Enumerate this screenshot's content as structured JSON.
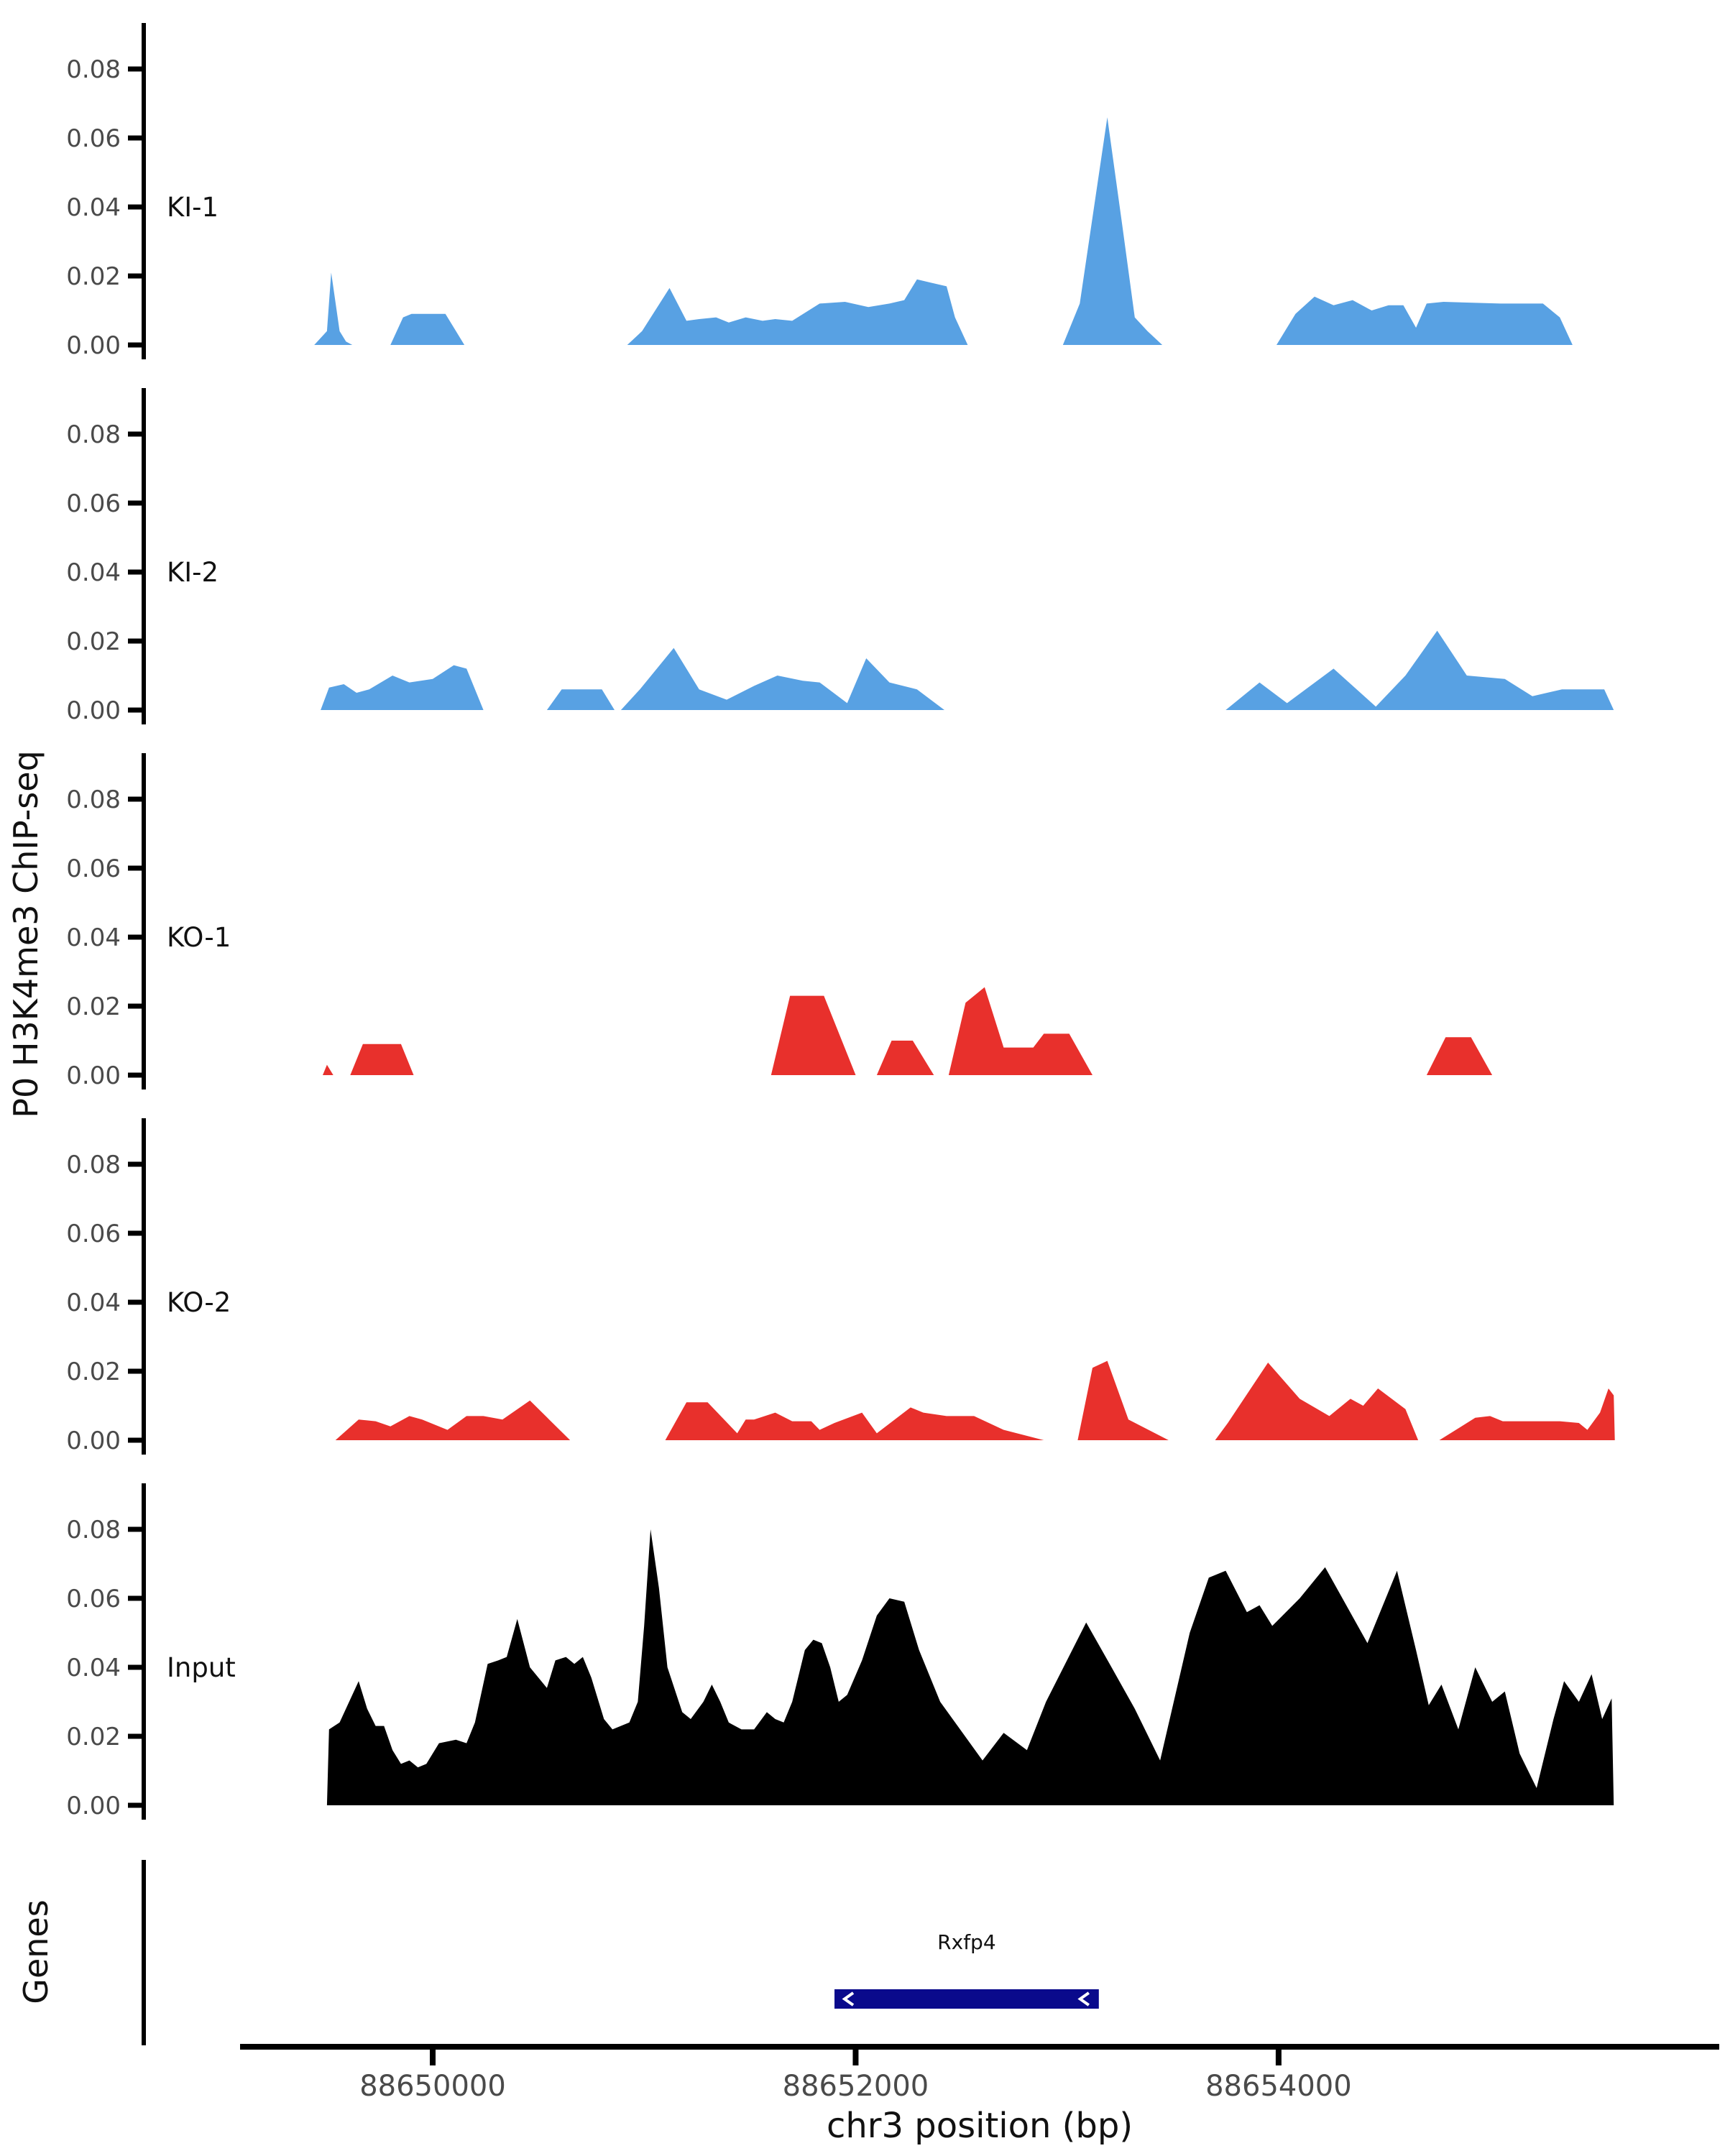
{
  "figure": {
    "ylabel": "P0 H3K4me3 ChIP-seq",
    "xlabel": "chr3 position (bp)",
    "genes_axis_label": "Genes",
    "gene_name": "Rxfp4"
  },
  "colors": {
    "ki_blue": "#58A1E3",
    "ko_red": "#E8302C",
    "input_black": "#000000",
    "gene_navy": "#0A0A8C",
    "axis": "#000000",
    "tick_text": "#4a4a4a",
    "label_text": "#111111"
  },
  "chart_data": {
    "type": "area",
    "title": "",
    "xlabel": "chr3 position (bp)",
    "ylabel": "P0 H3K4me3 ChIP-seq",
    "xlim": [
      88649089,
      88656080
    ],
    "x_ticks": [
      88650000,
      88652000,
      88654000
    ],
    "y_ticks": [
      0.0,
      0.02,
      0.04,
      0.06,
      0.08
    ],
    "ylim": [
      0,
      0.088
    ],
    "grid": false,
    "legend_position": "none",
    "tracks": [
      {
        "label": "KI-1",
        "color": "#58A1E3",
        "points": [
          [
            88649440,
            0
          ],
          [
            88649500,
            0.004
          ],
          [
            88649520,
            0.021
          ],
          [
            88649560,
            0.004
          ],
          [
            88649590,
            0.001
          ],
          [
            88649620,
            0
          ],
          [
            88649800,
            0
          ],
          [
            88649860,
            0.008
          ],
          [
            88649900,
            0.009
          ],
          [
            88650060,
            0.009
          ],
          [
            88650110,
            0.004
          ],
          [
            88650150,
            0
          ],
          [
            88650920,
            0
          ],
          [
            88650990,
            0.004
          ],
          [
            88651120,
            0.0165
          ],
          [
            88651200,
            0.007
          ],
          [
            88651260,
            0.0075
          ],
          [
            88651340,
            0.008
          ],
          [
            88651400,
            0.0065
          ],
          [
            88651480,
            0.008
          ],
          [
            88651560,
            0.007
          ],
          [
            88651620,
            0.0075
          ],
          [
            88651700,
            0.007
          ],
          [
            88651830,
            0.012
          ],
          [
            88651950,
            0.0125
          ],
          [
            88652060,
            0.011
          ],
          [
            88652160,
            0.012
          ],
          [
            88652230,
            0.013
          ],
          [
            88652290,
            0.019
          ],
          [
            88652360,
            0.018
          ],
          [
            88652430,
            0.017
          ],
          [
            88652470,
            0.008
          ],
          [
            88652530,
            0
          ],
          [
            88652980,
            0
          ],
          [
            88653060,
            0.012
          ],
          [
            88653190,
            0.066
          ],
          [
            88653260,
            0.035
          ],
          [
            88653320,
            0.008
          ],
          [
            88653380,
            0.004
          ],
          [
            88653450,
            0
          ],
          [
            88653990,
            0
          ],
          [
            88654080,
            0.009
          ],
          [
            88654170,
            0.014
          ],
          [
            88654260,
            0.0115
          ],
          [
            88654350,
            0.013
          ],
          [
            88654440,
            0.01
          ],
          [
            88654520,
            0.0115
          ],
          [
            88654590,
            0.0115
          ],
          [
            88654650,
            0.005
          ],
          [
            88654700,
            0.012
          ],
          [
            88654780,
            0.0125
          ],
          [
            88655050,
            0.012
          ],
          [
            88655250,
            0.012
          ],
          [
            88655330,
            0.008
          ],
          [
            88655390,
            0
          ]
        ]
      },
      {
        "label": "KI-2",
        "color": "#58A1E3",
        "points": [
          [
            88649470,
            0
          ],
          [
            88649510,
            0.0065
          ],
          [
            88649580,
            0.0075
          ],
          [
            88649640,
            0.005
          ],
          [
            88649700,
            0.006
          ],
          [
            88649810,
            0.01
          ],
          [
            88649890,
            0.008
          ],
          [
            88650000,
            0.009
          ],
          [
            88650100,
            0.013
          ],
          [
            88650160,
            0.012
          ],
          [
            88650240,
            0
          ],
          [
            88650540,
            0
          ],
          [
            88650610,
            0.006
          ],
          [
            88650800,
            0.006
          ],
          [
            88650860,
            0
          ],
          [
            88650890,
            0
          ],
          [
            88650980,
            0.006
          ],
          [
            88651140,
            0.018
          ],
          [
            88651260,
            0.006
          ],
          [
            88651390,
            0.003
          ],
          [
            88651520,
            0.007
          ],
          [
            88651630,
            0.01
          ],
          [
            88651750,
            0.0085
          ],
          [
            88651830,
            0.008
          ],
          [
            88651960,
            0.002
          ],
          [
            88652050,
            0.015
          ],
          [
            88652160,
            0.008
          ],
          [
            88652290,
            0.006
          ],
          [
            88652420,
            0
          ],
          [
            88653750,
            0
          ],
          [
            88653910,
            0.008
          ],
          [
            88654040,
            0.002
          ],
          [
            88654260,
            0.012
          ],
          [
            88654460,
            0.001
          ],
          [
            88654600,
            0.01
          ],
          [
            88654750,
            0.023
          ],
          [
            88654890,
            0.01
          ],
          [
            88655070,
            0.009
          ],
          [
            88655200,
            0.004
          ],
          [
            88655340,
            0.006
          ],
          [
            88655540,
            0.006
          ],
          [
            88655585,
            0
          ]
        ]
      },
      {
        "label": "KO-1",
        "color": "#E8302C",
        "points": [
          [
            88649480,
            0
          ],
          [
            88649500,
            0.003
          ],
          [
            88649530,
            0
          ],
          [
            88649610,
            0
          ],
          [
            88649670,
            0.009
          ],
          [
            88649850,
            0.009
          ],
          [
            88649910,
            0
          ],
          [
            88651600,
            0
          ],
          [
            88651690,
            0.023
          ],
          [
            88651850,
            0.023
          ],
          [
            88652000,
            0
          ],
          [
            88652100,
            0
          ],
          [
            88652170,
            0.01
          ],
          [
            88652270,
            0.01
          ],
          [
            88652370,
            0
          ],
          [
            88652440,
            0
          ],
          [
            88652520,
            0.021
          ],
          [
            88652610,
            0.0255
          ],
          [
            88652700,
            0.008
          ],
          [
            88652840,
            0.008
          ],
          [
            88652890,
            0.012
          ],
          [
            88653010,
            0.012
          ],
          [
            88653120,
            0
          ],
          [
            88654700,
            0
          ],
          [
            88654790,
            0.011
          ],
          [
            88654910,
            0.011
          ],
          [
            88655010,
            0
          ]
        ]
      },
      {
        "label": "KO-2",
        "color": "#E8302C",
        "points": [
          [
            88649540,
            0
          ],
          [
            88649650,
            0.006
          ],
          [
            88649730,
            0.0055
          ],
          [
            88649800,
            0.004
          ],
          [
            88649890,
            0.007
          ],
          [
            88649950,
            0.006
          ],
          [
            88650070,
            0.003
          ],
          [
            88650160,
            0.007
          ],
          [
            88650240,
            0.007
          ],
          [
            88650330,
            0.006
          ],
          [
            88650460,
            0.0115
          ],
          [
            88650650,
            0
          ],
          [
            88651100,
            0
          ],
          [
            88651200,
            0.011
          ],
          [
            88651300,
            0.011
          ],
          [
            88651440,
            0.002
          ],
          [
            88651480,
            0.006
          ],
          [
            88651520,
            0.006
          ],
          [
            88651620,
            0.008
          ],
          [
            88651700,
            0.0055
          ],
          [
            88651790,
            0.0055
          ],
          [
            88651830,
            0.003
          ],
          [
            88651900,
            0.005
          ],
          [
            88652030,
            0.008
          ],
          [
            88652100,
            0.002
          ],
          [
            88652260,
            0.0095
          ],
          [
            88652320,
            0.008
          ],
          [
            88652430,
            0.007
          ],
          [
            88652560,
            0.007
          ],
          [
            88652700,
            0.003
          ],
          [
            88652890,
            0
          ],
          [
            88653050,
            0
          ],
          [
            88653120,
            0.021
          ],
          [
            88653190,
            0.023
          ],
          [
            88653290,
            0.006
          ],
          [
            88653480,
            0
          ],
          [
            88653700,
            0
          ],
          [
            88653760,
            0.005
          ],
          [
            88653950,
            0.0225
          ],
          [
            88654100,
            0.012
          ],
          [
            88654240,
            0.007
          ],
          [
            88654340,
            0.012
          ],
          [
            88654400,
            0.01
          ],
          [
            88654470,
            0.015
          ],
          [
            88654600,
            0.009
          ],
          [
            88654660,
            0
          ],
          [
            88654760,
            0
          ],
          [
            88654930,
            0.0065
          ],
          [
            88655000,
            0.007
          ],
          [
            88655060,
            0.0055
          ],
          [
            88655200,
            0.0055
          ],
          [
            88655330,
            0.0055
          ],
          [
            88655420,
            0.005
          ],
          [
            88655460,
            0.003
          ],
          [
            88655520,
            0.008
          ],
          [
            88655560,
            0.015
          ],
          [
            88655585,
            0.013
          ],
          [
            88655590,
            0
          ]
        ]
      },
      {
        "label": "Input",
        "color": "#000000",
        "points": [
          [
            88649500,
            0
          ],
          [
            88649510,
            0.022
          ],
          [
            88649560,
            0.024
          ],
          [
            88649650,
            0.036
          ],
          [
            88649690,
            0.028
          ],
          [
            88649730,
            0.023
          ],
          [
            88649770,
            0.023
          ],
          [
            88649810,
            0.016
          ],
          [
            88649850,
            0.012
          ],
          [
            88649890,
            0.013
          ],
          [
            88649930,
            0.011
          ],
          [
            88649970,
            0.012
          ],
          [
            88650030,
            0.018
          ],
          [
            88650110,
            0.019
          ],
          [
            88650160,
            0.018
          ],
          [
            88650200,
            0.024
          ],
          [
            88650260,
            0.041
          ],
          [
            88650310,
            0.042
          ],
          [
            88650350,
            0.043
          ],
          [
            88650400,
            0.054
          ],
          [
            88650460,
            0.04
          ],
          [
            88650500,
            0.037
          ],
          [
            88650540,
            0.034
          ],
          [
            88650580,
            0.042
          ],
          [
            88650630,
            0.043
          ],
          [
            88650670,
            0.041
          ],
          [
            88650710,
            0.043
          ],
          [
            88650750,
            0.037
          ],
          [
            88650810,
            0.025
          ],
          [
            88650850,
            0.022
          ],
          [
            88650930,
            0.024
          ],
          [
            88650970,
            0.03
          ],
          [
            88651000,
            0.052
          ],
          [
            88651030,
            0.08
          ],
          [
            88651070,
            0.063
          ],
          [
            88651110,
            0.04
          ],
          [
            88651180,
            0.027
          ],
          [
            88651220,
            0.025
          ],
          [
            88651280,
            0.03
          ],
          [
            88651320,
            0.035
          ],
          [
            88651360,
            0.03
          ],
          [
            88651400,
            0.024
          ],
          [
            88651460,
            0.022
          ],
          [
            88651520,
            0.022
          ],
          [
            88651580,
            0.027
          ],
          [
            88651620,
            0.025
          ],
          [
            88651660,
            0.024
          ],
          [
            88651700,
            0.03
          ],
          [
            88651760,
            0.045
          ],
          [
            88651800,
            0.048
          ],
          [
            88651840,
            0.047
          ],
          [
            88651880,
            0.04
          ],
          [
            88651920,
            0.03
          ],
          [
            88651960,
            0.032
          ],
          [
            88652030,
            0.042
          ],
          [
            88652100,
            0.055
          ],
          [
            88652160,
            0.06
          ],
          [
            88652230,
            0.059
          ],
          [
            88652300,
            0.045
          ],
          [
            88652400,
            0.03
          ],
          [
            88652600,
            0.013
          ],
          [
            88652700,
            0.021
          ],
          [
            88652810,
            0.016
          ],
          [
            88652900,
            0.03
          ],
          [
            88653090,
            0.053
          ],
          [
            88653210,
            0.04
          ],
          [
            88653320,
            0.028
          ],
          [
            88653440,
            0.013
          ],
          [
            88653580,
            0.05
          ],
          [
            88653670,
            0.066
          ],
          [
            88653750,
            0.068
          ],
          [
            88653850,
            0.056
          ],
          [
            88653910,
            0.058
          ],
          [
            88653970,
            0.052
          ],
          [
            88654100,
            0.06
          ],
          [
            88654220,
            0.069
          ],
          [
            88654420,
            0.047
          ],
          [
            88654560,
            0.068
          ],
          [
            88654650,
            0.045
          ],
          [
            88654710,
            0.029
          ],
          [
            88654770,
            0.035
          ],
          [
            88654850,
            0.022
          ],
          [
            88654930,
            0.04
          ],
          [
            88655010,
            0.03
          ],
          [
            88655070,
            0.033
          ],
          [
            88655140,
            0.015
          ],
          [
            88655220,
            0.005
          ],
          [
            88655300,
            0.025
          ],
          [
            88655350,
            0.036
          ],
          [
            88655420,
            0.03
          ],
          [
            88655480,
            0.038
          ],
          [
            88655530,
            0.025
          ],
          [
            88655575,
            0.031
          ],
          [
            88655585,
            0
          ]
        ]
      }
    ],
    "genes_panel": {
      "label": "Genes",
      "genes": [
        {
          "name": "Rxfp4",
          "start": 88651900,
          "end": 88653150,
          "strand": "-",
          "color": "#0A0A8C"
        }
      ]
    }
  }
}
